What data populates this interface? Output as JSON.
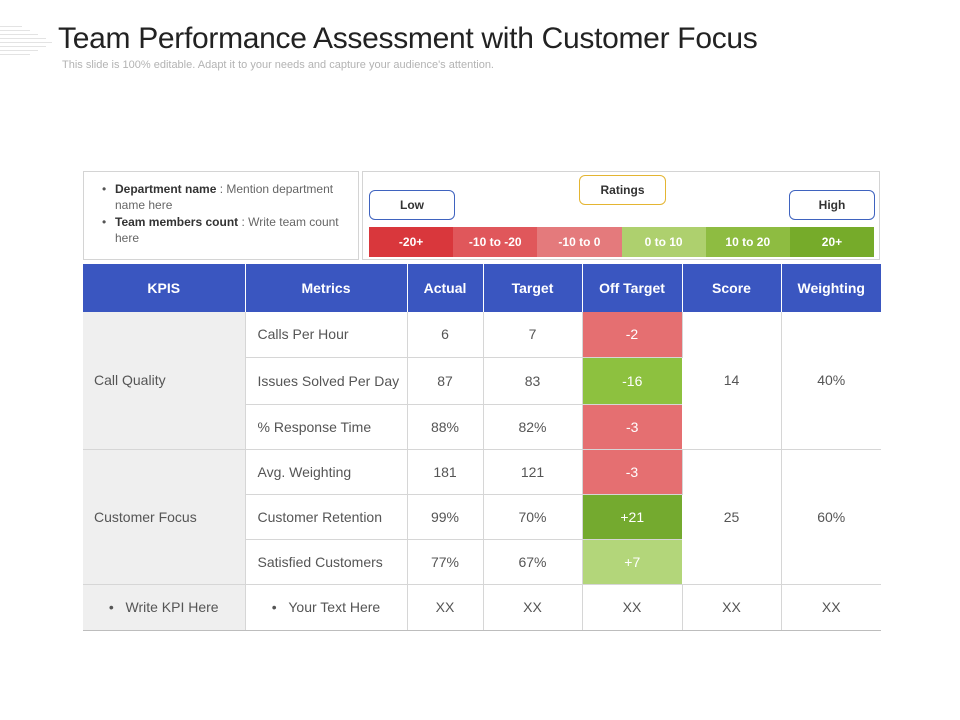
{
  "header": {
    "title": "Team Performance Assessment with Customer Focus",
    "subtitle": "This slide is 100% editable. Adapt it to your needs and capture your audience's attention."
  },
  "info_box": {
    "items": [
      {
        "label": "Department name",
        "text": " : Mention department  name here"
      },
      {
        "label": "Team members count",
        "text": " : Write team count here"
      }
    ]
  },
  "ratings": {
    "title": "Ratings",
    "low_label": "Low",
    "high_label": "High",
    "scale": [
      {
        "label": "-20+",
        "color": "#d9373c"
      },
      {
        "label": "-10 to -20",
        "color": "#e0575b"
      },
      {
        "label": "-10 to 0",
        "color": "#e47a7c"
      },
      {
        "label": "0 to 10",
        "color": "#aed06e"
      },
      {
        "label": "10 to 20",
        "color": "#8ebc41"
      },
      {
        "label": "20+",
        "color": "#76ab2a"
      }
    ]
  },
  "table": {
    "headers": [
      "KPIS",
      "Metrics",
      "Actual",
      "Target",
      "Off Target",
      "Score",
      "Weighting"
    ],
    "groups": [
      {
        "kpi": "Call Quality",
        "score": "14",
        "weighting": "40%",
        "rows": [
          {
            "metric": "Calls Per Hour",
            "actual": "6",
            "target": "7",
            "off_target": "-2",
            "off_color": "#e56f71"
          },
          {
            "metric": "Issues Solved Per Day",
            "actual": "87",
            "target": "83",
            "off_target": "-16",
            "off_color": "#8dc13f"
          },
          {
            "metric": "% Response Time",
            "actual": "88%",
            "target": "82%",
            "off_target": "-3",
            "off_color": "#e56f71"
          }
        ]
      },
      {
        "kpi": "Customer Focus",
        "score": "25",
        "weighting": "60%",
        "rows": [
          {
            "metric": "Avg. Weighting",
            "actual": "181",
            "target": "121",
            "off_target": "-3",
            "off_color": "#e56f71"
          },
          {
            "metric": "Customer Retention",
            "actual": "99%",
            "target": "70%",
            "off_target": "+21",
            "off_color": "#74aa2f"
          },
          {
            "metric": "Satisfied Customers",
            "actual": "77%",
            "target": "67%",
            "off_target": "+7",
            "off_color": "#b3d67a"
          }
        ]
      }
    ],
    "footer": {
      "kpi": "Write KPI Here",
      "metric": "Your Text Here",
      "actual": "XX",
      "target": "XX",
      "off_target": "XX",
      "score": "XX",
      "weighting": "XX"
    }
  }
}
